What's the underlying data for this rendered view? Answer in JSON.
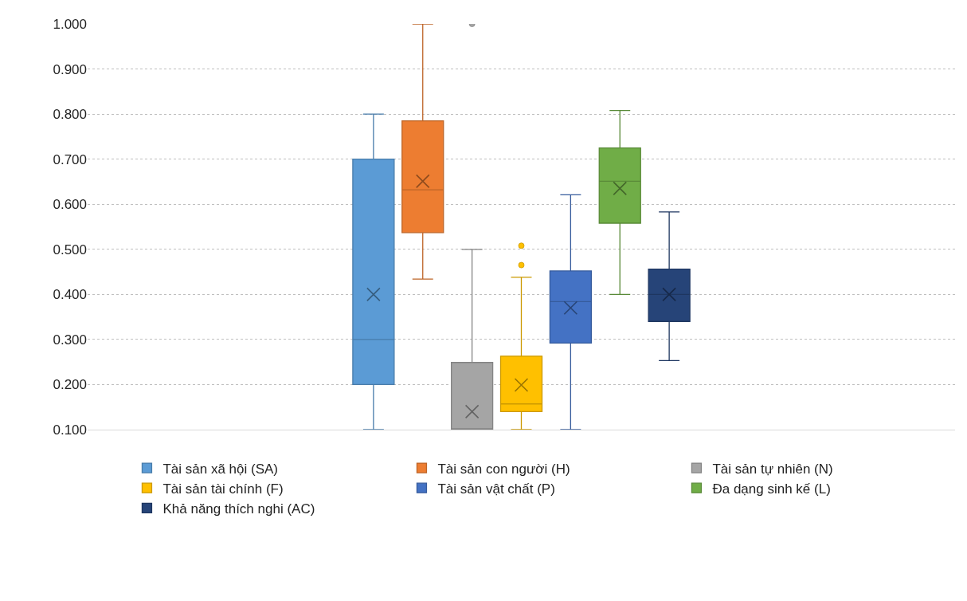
{
  "chart_data": {
    "type": "box",
    "categories": [
      null
    ],
    "ylim": [
      0.1,
      1.0
    ],
    "yticks": [
      {
        "value": 0.1,
        "label": "0.100"
      },
      {
        "value": 0.2,
        "label": "0.200"
      },
      {
        "value": 0.3,
        "label": "0.300"
      },
      {
        "value": 0.4,
        "label": "0.400"
      },
      {
        "value": 0.5,
        "label": "0.500"
      },
      {
        "value": 0.6,
        "label": "0.600"
      },
      {
        "value": 0.7,
        "label": "0.700"
      },
      {
        "value": 0.8,
        "label": "0.800"
      },
      {
        "value": 0.9,
        "label": "0.900"
      },
      {
        "value": 1.0,
        "label": "1.000"
      }
    ],
    "grid": "y",
    "legend": "bottom",
    "tick_labels": "y",
    "series": [
      {
        "name": "Tài sản xã hội (SA)",
        "color": "#5b9bd5",
        "boxes": [
          {
            "low": 0.1,
            "q1": 0.2,
            "median": 0.3,
            "q3": 0.7,
            "high": 0.8,
            "mean": 0.4
          }
        ]
      },
      {
        "name": "Tài sản con người (H)",
        "color": "#ed7d31",
        "boxes": [
          {
            "low": 0.434,
            "q1": 0.537,
            "median": 0.632,
            "q3": 0.785,
            "high": 1.0,
            "mean": 0.651
          }
        ]
      },
      {
        "name": "Tài sản tự nhiên (N)",
        "color": "#a5a5a5",
        "boxes": [
          {
            "low": 0.1,
            "q1": 0.1,
            "median": 0.1,
            "q3": 0.249,
            "high": 0.5,
            "mean": 0.14,
            "outliers": [
              1.0
            ]
          }
        ]
      },
      {
        "name": "Tài sản tài chính (F)",
        "color": "#ffc000",
        "boxes": [
          {
            "low": 0.1,
            "q1": 0.14,
            "median": 0.157,
            "q3": 0.263,
            "high": 0.438,
            "mean": 0.199,
            "outliers": [
              0.465,
              0.508
            ]
          }
        ]
      },
      {
        "name": "Tài sản vật chất (P)",
        "color": "#4472c4",
        "boxes": [
          {
            "low": 0.1,
            "q1": 0.292,
            "median": 0.384,
            "q3": 0.452,
            "high": 0.621,
            "mean": 0.37
          }
        ]
      },
      {
        "name": "Đa dạng sinh kế (L)",
        "color": "#70ad47",
        "boxes": [
          {
            "low": 0.4,
            "q1": 0.558,
            "median": 0.651,
            "q3": 0.725,
            "high": 0.808,
            "mean": 0.635
          }
        ]
      },
      {
        "name": "Khả năng thích nghi (AC)",
        "color": "#264478",
        "boxes": [
          {
            "low": 0.253,
            "q1": 0.34,
            "median": 0.4,
            "q3": 0.456,
            "high": 0.583,
            "mean": 0.4
          }
        ]
      }
    ]
  }
}
